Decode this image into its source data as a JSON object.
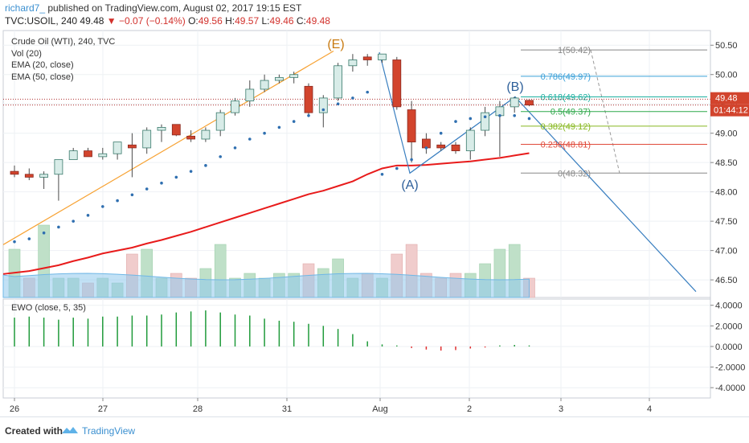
{
  "header": {
    "author": "richard7_",
    "published_text": " published on TradingView.com, August 02, 2017 19:15 EST",
    "symbol_line": "TVC:USOIL, 240",
    "last": "49.48",
    "change": "−0.07 (−0.14%)",
    "open_label": "O:",
    "open": "49.56",
    "high_label": "H:",
    "high": "49.57",
    "low_label": "L:",
    "low": "49.46",
    "close_label": "C:",
    "close": "49.48"
  },
  "legend": {
    "title": "Crude Oil (WTI), 240, TVC",
    "volume": "Vol (20)",
    "ema20": "EMA (20, close)",
    "ema50": "EMA (50, close)",
    "ewo": "EWO (close, 5, 35)"
  },
  "footer": {
    "created_with": "Created with",
    "brand": "TradingView"
  },
  "colors": {
    "up": "#26a69a",
    "down": "#d2442d",
    "ema50": "#e81b1b",
    "psar": "#2f6fb0",
    "fib_line": "#3a7fc0",
    "trend_orange": "#f7a233",
    "ewo_up": "#1f9a3a",
    "ewo_down": "#e03030",
    "vol_up": "#bfe0c8",
    "vol_down": "#f0cccc",
    "vol_ma": "#8fc9ec"
  },
  "chart_data": [
    {
      "type": "candlestick",
      "title": "Crude Oil (WTI), 240, TVC",
      "ylim": [
        46.2,
        50.75
      ],
      "y_ticks": [
        "50.50",
        "50.00",
        "49.50",
        "49.00",
        "48.50",
        "48.00",
        "47.50",
        "47.00",
        "46.50"
      ],
      "x_ticks": [
        "26",
        "27",
        "28",
        "31",
        "Aug",
        "2",
        "3",
        "4"
      ],
      "last_price": "49.48",
      "countdown": "01:44:12",
      "candles": [
        {
          "o": 48.35,
          "h": 48.45,
          "l": 48.25,
          "c": 48.3
        },
        {
          "o": 48.3,
          "h": 48.4,
          "l": 48.2,
          "c": 48.25
        },
        {
          "o": 48.25,
          "h": 48.35,
          "l": 48.05,
          "c": 48.3
        },
        {
          "o": 48.3,
          "h": 48.55,
          "l": 47.85,
          "c": 48.55
        },
        {
          "o": 48.55,
          "h": 48.75,
          "l": 48.55,
          "c": 48.7
        },
        {
          "o": 48.7,
          "h": 48.75,
          "l": 48.6,
          "c": 48.6
        },
        {
          "o": 48.6,
          "h": 48.75,
          "l": 48.55,
          "c": 48.65
        },
        {
          "o": 48.65,
          "h": 48.85,
          "l": 48.55,
          "c": 48.85
        },
        {
          "o": 48.8,
          "h": 49.0,
          "l": 48.25,
          "c": 48.75
        },
        {
          "o": 48.75,
          "h": 49.1,
          "l": 48.65,
          "c": 49.05
        },
        {
          "o": 49.05,
          "h": 49.15,
          "l": 48.85,
          "c": 49.1
        },
        {
          "o": 49.15,
          "h": 49.15,
          "l": 48.95,
          "c": 48.97
        },
        {
          "o": 48.95,
          "h": 49.05,
          "l": 48.85,
          "c": 48.9
        },
        {
          "o": 48.9,
          "h": 49.1,
          "l": 48.85,
          "c": 49.05
        },
        {
          "o": 49.05,
          "h": 49.4,
          "l": 48.95,
          "c": 49.35
        },
        {
          "o": 49.35,
          "h": 49.6,
          "l": 49.3,
          "c": 49.55
        },
        {
          "o": 49.55,
          "h": 49.9,
          "l": 49.45,
          "c": 49.75
        },
        {
          "o": 49.75,
          "h": 50.0,
          "l": 49.7,
          "c": 49.9
        },
        {
          "o": 49.9,
          "h": 50.0,
          "l": 49.85,
          "c": 49.95
        },
        {
          "o": 49.95,
          "h": 50.05,
          "l": 49.85,
          "c": 50.0
        },
        {
          "o": 49.8,
          "h": 49.85,
          "l": 49.3,
          "c": 49.35
        },
        {
          "o": 49.35,
          "h": 49.65,
          "l": 49.1,
          "c": 49.6
        },
        {
          "o": 49.6,
          "h": 50.2,
          "l": 49.55,
          "c": 50.15
        },
        {
          "o": 50.15,
          "h": 50.35,
          "l": 50.05,
          "c": 50.25
        },
        {
          "o": 50.3,
          "h": 50.35,
          "l": 50.15,
          "c": 50.25
        },
        {
          "o": 50.25,
          "h": 50.35,
          "l": 50.2,
          "c": 50.35
        },
        {
          "o": 50.25,
          "h": 50.3,
          "l": 49.4,
          "c": 49.45
        },
        {
          "o": 49.4,
          "h": 49.55,
          "l": 48.5,
          "c": 48.85
        },
        {
          "o": 48.9,
          "h": 49.0,
          "l": 48.65,
          "c": 48.75
        },
        {
          "o": 48.8,
          "h": 48.85,
          "l": 48.7,
          "c": 48.75
        },
        {
          "o": 48.8,
          "h": 48.85,
          "l": 48.65,
          "c": 48.7
        },
        {
          "o": 48.7,
          "h": 49.1,
          "l": 48.55,
          "c": 49.05
        },
        {
          "o": 49.05,
          "h": 49.45,
          "l": 48.95,
          "c": 49.35
        },
        {
          "o": 49.3,
          "h": 49.55,
          "l": 48.6,
          "c": 49.45
        },
        {
          "o": 49.45,
          "h": 49.62,
          "l": 49.35,
          "c": 49.6
        },
        {
          "o": 49.56,
          "h": 49.57,
          "l": 49.46,
          "c": 49.48
        }
      ],
      "psar": [
        47.15,
        47.2,
        47.3,
        47.4,
        47.5,
        47.6,
        47.75,
        47.85,
        47.95,
        48.05,
        48.15,
        48.25,
        48.35,
        48.45,
        48.6,
        48.75,
        48.9,
        49.0,
        49.1,
        49.2,
        49.3,
        49.4,
        49.5,
        49.6,
        49.7,
        48.3,
        48.4,
        48.55,
        48.75,
        49.0,
        49.2,
        49.25,
        49.28,
        49.3,
        49.3,
        49.25
      ],
      "ema50": [
        46.6,
        46.65,
        46.7,
        46.75,
        46.82,
        46.88,
        46.95,
        47.0,
        47.05,
        47.12,
        47.18,
        47.25,
        47.32,
        47.4,
        47.48,
        47.56,
        47.64,
        47.72,
        47.8,
        47.88,
        47.96,
        48.02,
        48.1,
        48.18,
        48.3,
        48.4,
        48.45,
        48.45,
        48.46,
        48.48,
        48.5,
        48.52,
        48.55,
        48.58,
        48.62,
        48.66
      ]
    },
    {
      "type": "bar",
      "title": "Vol (20)",
      "values": [
        1,
        0.4,
        1.5,
        0.4,
        0.4,
        0.3,
        0.4,
        0.3,
        0.9,
        1,
        0.4,
        0.5,
        0.4,
        0.6,
        1.1,
        0.4,
        0.5,
        0.4,
        0.5,
        0.5,
        0.7,
        0.6,
        0.8,
        0.4,
        0.5,
        0.4,
        0.9,
        1.1,
        0.5,
        0.4,
        0.5,
        0.5,
        0.7,
        1.0,
        1.1,
        0.4
      ],
      "up": [
        true,
        false,
        true,
        true,
        true,
        false,
        true,
        true,
        false,
        true,
        true,
        false,
        false,
        true,
        true,
        true,
        true,
        true,
        true,
        true,
        false,
        true,
        true,
        true,
        false,
        true,
        false,
        false,
        false,
        false,
        false,
        true,
        true,
        true,
        true,
        false
      ]
    },
    {
      "type": "bar",
      "title": "EWO (close, 5, 35)",
      "ylim": [
        -5,
        4.6
      ],
      "y_ticks": [
        "4.0000",
        "2.0000",
        "0.0000",
        "-2.0000",
        "-4.0000"
      ],
      "values": [
        2.8,
        2.9,
        2.8,
        2.6,
        2.8,
        2.7,
        2.9,
        2.9,
        3.0,
        3.0,
        3.1,
        3.3,
        3.4,
        3.5,
        3.3,
        3.1,
        3.0,
        2.7,
        2.5,
        2.4,
        2.2,
        2.0,
        1.7,
        1.2,
        0.5,
        0.2,
        0.1,
        -0.15,
        -0.3,
        -0.4,
        -0.35,
        -0.2,
        -0.1,
        0.1,
        0.15,
        0.1
      ]
    }
  ],
  "annotations": {
    "wave_E": "(E)",
    "wave_A": "(A)",
    "wave_B": "(B)",
    "fib_levels": [
      {
        "label": "1(50.42)",
        "value": 50.42,
        "color": "#888888"
      },
      {
        "label": "0.786(49.97)",
        "value": 49.97,
        "color": "#3aa0d8"
      },
      {
        "label": "0.618(49.62)",
        "value": 49.62,
        "color": "#20b0a0"
      },
      {
        "label": "0.5(49.37)",
        "value": 49.37,
        "color": "#2fa84a"
      },
      {
        "label": "0.382(49.12)",
        "value": 49.12,
        "color": "#88b820"
      },
      {
        "label": "0.236(48.81)",
        "value": 48.81,
        "color": "#e04a3a"
      },
      {
        "label": "0(48.32)",
        "value": 48.32,
        "color": "#888888"
      }
    ]
  }
}
